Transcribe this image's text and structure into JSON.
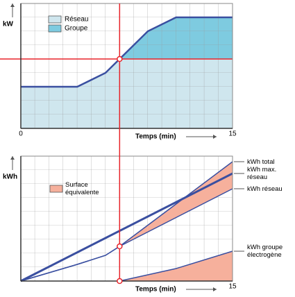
{
  "chart_data": [
    {
      "type": "stacked-area",
      "y_label": "kW",
      "x_label": "Temps (min)",
      "xlim": [
        0,
        15
      ],
      "ylim": [
        0,
        9
      ],
      "xticks": [
        0,
        15
      ],
      "x": [
        0,
        4,
        6,
        7,
        9,
        11,
        15
      ],
      "series": [
        {
          "name": "Réseau",
          "color": "#cfe6ee",
          "values": [
            3,
            3,
            4,
            5,
            5,
            5,
            5
          ]
        },
        {
          "name": "Groupe",
          "color": "#7ecbe0",
          "values": [
            0,
            0,
            0,
            0,
            2,
            3,
            3
          ]
        }
      ],
      "line_color": "#3a4fa0",
      "threshold": 5,
      "cutoff_x": 7,
      "marker_color": "#e8242a"
    },
    {
      "type": "line",
      "y_label": "kWh",
      "x_label": "Temps (min)",
      "xlim": [
        0,
        15
      ],
      "ylim": [
        0,
        9
      ],
      "xticks": [
        15
      ],
      "series": [
        {
          "name": "kWh total",
          "color": "#3a4fa0",
          "width": 1.5,
          "x": [
            0,
            4,
            6,
            7,
            15
          ],
          "values": [
            0,
            1.2,
            1.85,
            2.5,
            8.6
          ]
        },
        {
          "name": "kWh max. réseau",
          "color": "#3a4fa0",
          "width": 3,
          "x": [
            0,
            15
          ],
          "values": [
            0,
            7.75
          ]
        },
        {
          "name": "kWh réseau",
          "color": "#3a4fa0",
          "width": 1.5,
          "x": [
            0,
            4,
            6,
            7,
            15
          ],
          "values": [
            0,
            1.2,
            1.85,
            2.5,
            6.65
          ]
        },
        {
          "name": "kWh groupe électrogène",
          "color": "#3a4fa0",
          "width": 1.5,
          "x": [
            7,
            11,
            15
          ],
          "values": [
            0,
            0.9,
            2.15
          ]
        }
      ],
      "fill_legend": "Surface équivalente",
      "fill_color": "#f6b09c",
      "marker_color": "#e8242a"
    }
  ]
}
